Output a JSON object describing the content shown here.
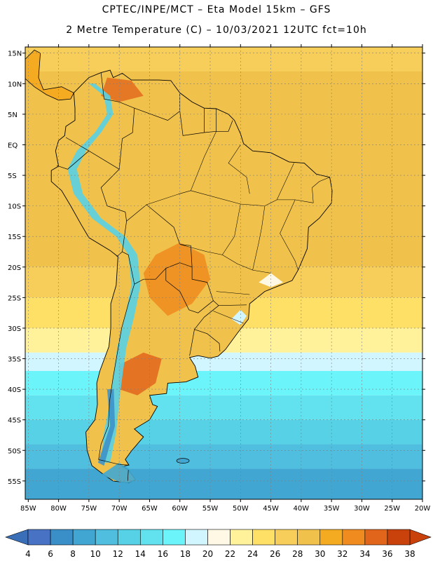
{
  "header": {
    "title_line1": "CPTEC/INPE/MCT –  Eta Model 15km – GFS",
    "title_line2": "2 Metre Temperature (C) – 10/03/2021 12UTC fct=10h"
  },
  "map": {
    "lat_labels": [
      "15N",
      "10N",
      "5N",
      "EQ",
      "5S",
      "10S",
      "15S",
      "20S",
      "25S",
      "30S",
      "35S",
      "40S",
      "45S",
      "50S",
      "55S"
    ],
    "lat_values": [
      15,
      10,
      5,
      0,
      -5,
      -10,
      -15,
      -20,
      -25,
      -30,
      -35,
      -40,
      -45,
      -50,
      -55
    ],
    "lon_labels": [
      "85W",
      "80W",
      "75W",
      "70W",
      "65W",
      "60W",
      "55W",
      "50W",
      "45W",
      "40W",
      "35W",
      "30W",
      "25W",
      "20W"
    ],
    "lon_values": [
      -85,
      -80,
      -75,
      -70,
      -65,
      -60,
      -55,
      -50,
      -45,
      -40,
      -35,
      -30,
      -25,
      -20
    ],
    "lon_range": [
      -85.5,
      -20
    ],
    "lat_range": [
      -58,
      16
    ],
    "ocean_bands": [
      {
        "lat": [
          16,
          -20
        ],
        "temp": 28
      },
      {
        "lat": [
          -20,
          -25
        ],
        "temp": 26
      },
      {
        "lat": [
          -25,
          -30
        ],
        "temp": 24
      },
      {
        "lat": [
          -30,
          -34
        ],
        "temp": 22
      },
      {
        "lat": [
          -34,
          -37
        ],
        "temp": 18
      },
      {
        "lat": [
          -37,
          -41
        ],
        "temp": 16
      },
      {
        "lat": [
          -41,
          -45
        ],
        "temp": 14
      },
      {
        "lat": [
          -45,
          -49
        ],
        "temp": 12
      },
      {
        "lat": [
          -49,
          -53
        ],
        "temp": 10
      },
      {
        "lat": [
          -53,
          -58
        ],
        "temp": 8
      }
    ]
  },
  "colorbar": {
    "labels": [
      "4",
      "6",
      "8",
      "10",
      "12",
      "14",
      "16",
      "18",
      "20",
      "22",
      "24",
      "26",
      "28",
      "30",
      "32",
      "34",
      "36",
      "38"
    ],
    "colors": [
      "#4872c4",
      "#3b8fc9",
      "#41a7d2",
      "#4fbedf",
      "#56d1e6",
      "#62e2ef",
      "#6bf5fb",
      "#d2f6ff",
      "#fff8e4",
      "#fff29a",
      "#ffe066",
      "#f7ce5a",
      "#f1c24b",
      "#f4aa21",
      "#ef8b1f",
      "#e2651c",
      "#c9420c"
    ],
    "left_arrow_color": "#3a6fb8",
    "right_arrow_color": "#c9420c"
  }
}
